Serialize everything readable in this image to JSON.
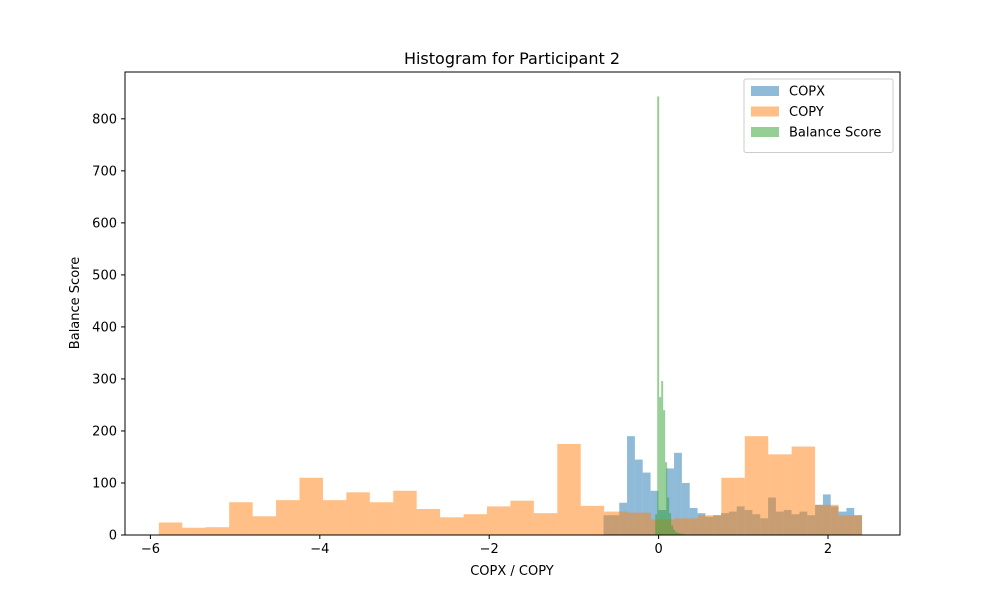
{
  "chart_data": {
    "type": "bar",
    "title": "Histogram for Participant 2",
    "xlabel": "COPX / COPY",
    "ylabel": "Balance Score",
    "xlim": [
      -6.3,
      2.85
    ],
    "ylim": [
      0,
      890
    ],
    "xticks": [
      -6,
      -4,
      -2,
      0,
      2
    ],
    "xtick_labels": [
      "−6",
      "−4",
      "−2",
      "0",
      "2"
    ],
    "yticks": [
      0,
      100,
      200,
      300,
      400,
      500,
      600,
      700,
      800
    ],
    "ytick_labels": [
      "0",
      "100",
      "200",
      "300",
      "400",
      "500",
      "600",
      "700",
      "800"
    ],
    "grid": false,
    "legend_position": "top-right",
    "series": [
      {
        "name": "COPX",
        "color": "#1f77b4",
        "opacity": 0.5,
        "bin_start": -0.65,
        "bin_width": 0.0925,
        "values": [
          38,
          38,
          62,
          190,
          145,
          120,
          85,
          48,
          128,
          158,
          100,
          52,
          42,
          35,
          38,
          42,
          45,
          55,
          48,
          40,
          32,
          72,
          45,
          48,
          40,
          45,
          38,
          58,
          78,
          55,
          45,
          52,
          38
        ]
      },
      {
        "name": "COPY",
        "color": "#ff7f0e",
        "opacity": 0.5,
        "bin_start": -5.9,
        "bin_width": 0.2767,
        "values": [
          24,
          14,
          15,
          63,
          36,
          67,
          110,
          67,
          82,
          63,
          85,
          50,
          34,
          40,
          55,
          66,
          42,
          175,
          56,
          45,
          43,
          30,
          32,
          38,
          110,
          190,
          155,
          170,
          58,
          38
        ]
      },
      {
        "name": "Balance Score",
        "color": "#2ca02c",
        "opacity": 0.5,
        "bin_start": -0.04,
        "bin_width": 0.0235,
        "values": [
          40,
          843,
          265,
          296,
          240,
          140,
          72,
          42,
          18,
          10,
          6,
          4,
          3,
          2,
          2,
          1,
          1,
          1,
          1,
          1
        ]
      }
    ]
  }
}
